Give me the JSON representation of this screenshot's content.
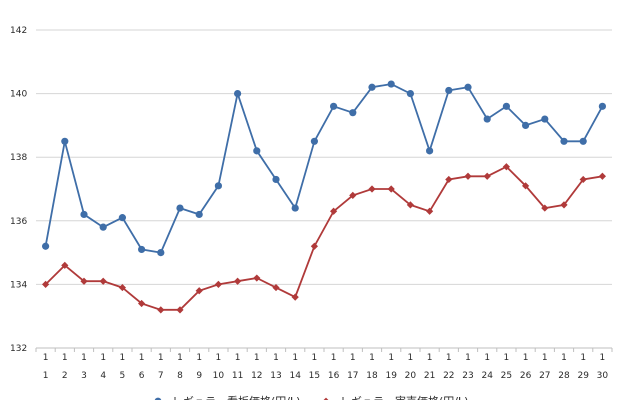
{
  "chart_data": {
    "type": "line",
    "title": "",
    "xlabel": "",
    "ylabel": "",
    "categories": [
      [
        "1",
        "1"
      ],
      [
        "1",
        "2"
      ],
      [
        "1",
        "3"
      ],
      [
        "1",
        "4"
      ],
      [
        "1",
        "5"
      ],
      [
        "1",
        "6"
      ],
      [
        "1",
        "7"
      ],
      [
        "1",
        "8"
      ],
      [
        "1",
        "9"
      ],
      [
        "1",
        "10"
      ],
      [
        "1",
        "11"
      ],
      [
        "1",
        "12"
      ],
      [
        "1",
        "13"
      ],
      [
        "1",
        "14"
      ],
      [
        "1",
        "15"
      ],
      [
        "1",
        "16"
      ],
      [
        "1",
        "17"
      ],
      [
        "1",
        "18"
      ],
      [
        "1",
        "19"
      ],
      [
        "1",
        "20"
      ],
      [
        "1",
        "21"
      ],
      [
        "1",
        "22"
      ],
      [
        "1",
        "23"
      ],
      [
        "1",
        "24"
      ],
      [
        "1",
        "25"
      ],
      [
        "1",
        "26"
      ],
      [
        "1",
        "27"
      ],
      [
        "1",
        "28"
      ],
      [
        "1",
        "29"
      ],
      [
        "1",
        "30"
      ]
    ],
    "ylim": [
      132,
      142
    ],
    "yticks": [
      132,
      134,
      136,
      138,
      140,
      142
    ],
    "grid": true,
    "legend_position": "bottom",
    "series": [
      {
        "name": "レギュラー看板価格(円/L)",
        "color": "#3f6ea8",
        "marker": "circle",
        "values": [
          135.2,
          138.5,
          136.2,
          135.8,
          136.1,
          135.1,
          135.0,
          136.4,
          136.2,
          137.1,
          140.0,
          138.2,
          137.3,
          136.4,
          138.5,
          139.6,
          139.4,
          140.2,
          140.3,
          140.0,
          138.2,
          140.1,
          140.2,
          139.2,
          139.6,
          139.0,
          139.2,
          138.5,
          138.5,
          139.6
        ]
      },
      {
        "name": "レギュラー実売価格(円/L)",
        "color": "#b03a3a",
        "marker": "diamond",
        "values": [
          134.0,
          134.6,
          134.1,
          134.1,
          133.9,
          133.4,
          133.2,
          133.2,
          133.8,
          134.0,
          134.1,
          134.2,
          133.9,
          133.6,
          135.2,
          136.3,
          136.8,
          137.0,
          137.0,
          136.5,
          136.3,
          137.3,
          137.4,
          137.4,
          137.7,
          137.1,
          136.4,
          136.5,
          137.3,
          137.4
        ]
      }
    ]
  }
}
